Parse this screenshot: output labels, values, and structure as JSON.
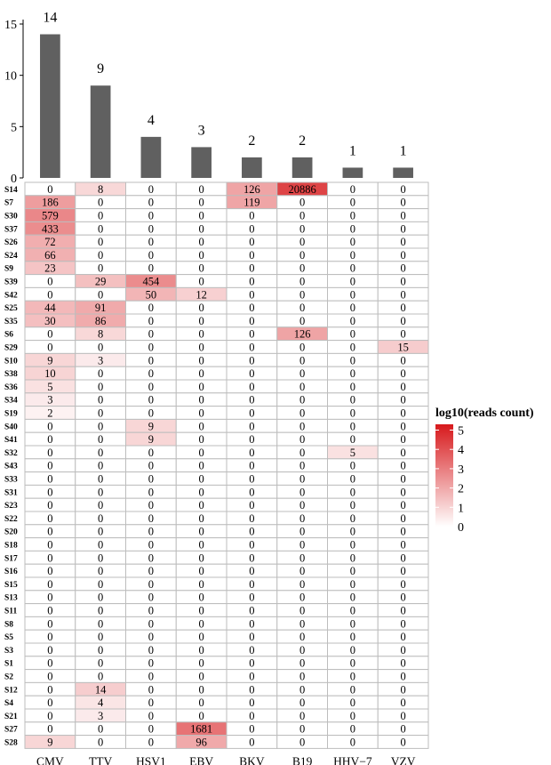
{
  "chart_data": [
    {
      "type": "bar",
      "categories": [
        "CMV",
        "TTV",
        "HSV1",
        "EBV",
        "BKV",
        "B19",
        "HHV−7",
        "VZV"
      ],
      "values": [
        14,
        9,
        4,
        3,
        2,
        2,
        1,
        1
      ],
      "y_ticks": [
        0,
        5,
        10,
        15
      ],
      "ylim": [
        0,
        15.5
      ],
      "bar_color": "#606060"
    },
    {
      "type": "heatmap",
      "columns": [
        "CMV",
        "TTV",
        "HSV1",
        "EBV",
        "BKV",
        "B19",
        "HHV−7",
        "VZV"
      ],
      "rows": [
        "S14",
        "S7",
        "S30",
        "S37",
        "S26",
        "S24",
        "S9",
        "S39",
        "S42",
        "S25",
        "S35",
        "S6",
        "S29",
        "S10",
        "S38",
        "S36",
        "S34",
        "S19",
        "S40",
        "S41",
        "S32",
        "S43",
        "S33",
        "S31",
        "S23",
        "S22",
        "S20",
        "S18",
        "S17",
        "S16",
        "S15",
        "S13",
        "S11",
        "S8",
        "S5",
        "S3",
        "S1",
        "S2",
        "S12",
        "S4",
        "S21",
        "S27",
        "S28"
      ],
      "values": [
        [
          0,
          8,
          0,
          0,
          126,
          20886,
          0,
          0
        ],
        [
          186,
          0,
          0,
          0,
          119,
          0,
          0,
          0
        ],
        [
          579,
          0,
          0,
          0,
          0,
          0,
          0,
          0
        ],
        [
          433,
          0,
          0,
          0,
          0,
          0,
          0,
          0
        ],
        [
          72,
          0,
          0,
          0,
          0,
          0,
          0,
          0
        ],
        [
          66,
          0,
          0,
          0,
          0,
          0,
          0,
          0
        ],
        [
          23,
          0,
          0,
          0,
          0,
          0,
          0,
          0
        ],
        [
          0,
          29,
          454,
          0,
          0,
          0,
          0,
          0
        ],
        [
          0,
          0,
          50,
          12,
          0,
          0,
          0,
          0
        ],
        [
          44,
          91,
          0,
          0,
          0,
          0,
          0,
          0
        ],
        [
          30,
          86,
          0,
          0,
          0,
          0,
          0,
          0
        ],
        [
          0,
          8,
          0,
          0,
          0,
          126,
          0,
          0
        ],
        [
          0,
          0,
          0,
          0,
          0,
          0,
          0,
          15
        ],
        [
          9,
          3,
          0,
          0,
          0,
          0,
          0,
          0
        ],
        [
          10,
          0,
          0,
          0,
          0,
          0,
          0,
          0
        ],
        [
          5,
          0,
          0,
          0,
          0,
          0,
          0,
          0
        ],
        [
          3,
          0,
          0,
          0,
          0,
          0,
          0,
          0
        ],
        [
          2,
          0,
          0,
          0,
          0,
          0,
          0,
          0
        ],
        [
          0,
          0,
          9,
          0,
          0,
          0,
          0,
          0
        ],
        [
          0,
          0,
          9,
          0,
          0,
          0,
          0,
          0
        ],
        [
          0,
          0,
          0,
          0,
          0,
          0,
          5,
          0
        ],
        [
          0,
          0,
          0,
          0,
          0,
          0,
          0,
          0
        ],
        [
          0,
          0,
          0,
          0,
          0,
          0,
          0,
          0
        ],
        [
          0,
          0,
          0,
          0,
          0,
          0,
          0,
          0
        ],
        [
          0,
          0,
          0,
          0,
          0,
          0,
          0,
          0
        ],
        [
          0,
          0,
          0,
          0,
          0,
          0,
          0,
          0
        ],
        [
          0,
          0,
          0,
          0,
          0,
          0,
          0,
          0
        ],
        [
          0,
          0,
          0,
          0,
          0,
          0,
          0,
          0
        ],
        [
          0,
          0,
          0,
          0,
          0,
          0,
          0,
          0
        ],
        [
          0,
          0,
          0,
          0,
          0,
          0,
          0,
          0
        ],
        [
          0,
          0,
          0,
          0,
          0,
          0,
          0,
          0
        ],
        [
          0,
          0,
          0,
          0,
          0,
          0,
          0,
          0
        ],
        [
          0,
          0,
          0,
          0,
          0,
          0,
          0,
          0
        ],
        [
          0,
          0,
          0,
          0,
          0,
          0,
          0,
          0
        ],
        [
          0,
          0,
          0,
          0,
          0,
          0,
          0,
          0
        ],
        [
          0,
          0,
          0,
          0,
          0,
          0,
          0,
          0
        ],
        [
          0,
          0,
          0,
          0,
          0,
          0,
          0,
          0
        ],
        [
          0,
          0,
          0,
          0,
          0,
          0,
          0,
          0
        ],
        [
          0,
          14,
          0,
          0,
          0,
          0,
          0,
          0
        ],
        [
          0,
          4,
          0,
          0,
          0,
          0,
          0,
          0
        ],
        [
          0,
          3,
          0,
          0,
          0,
          0,
          0,
          0
        ],
        [
          0,
          0,
          0,
          1681,
          0,
          0,
          0,
          0
        ],
        [
          9,
          0,
          0,
          96,
          0,
          0,
          0,
          0
        ]
      ],
      "color_scale": {
        "title": "log10(reads count)",
        "min": 0,
        "max": 5.3,
        "ticks": [
          0,
          1,
          2,
          3,
          4,
          5
        ],
        "low_color": "#ffffff",
        "high_color": "#d7191c"
      }
    }
  ]
}
